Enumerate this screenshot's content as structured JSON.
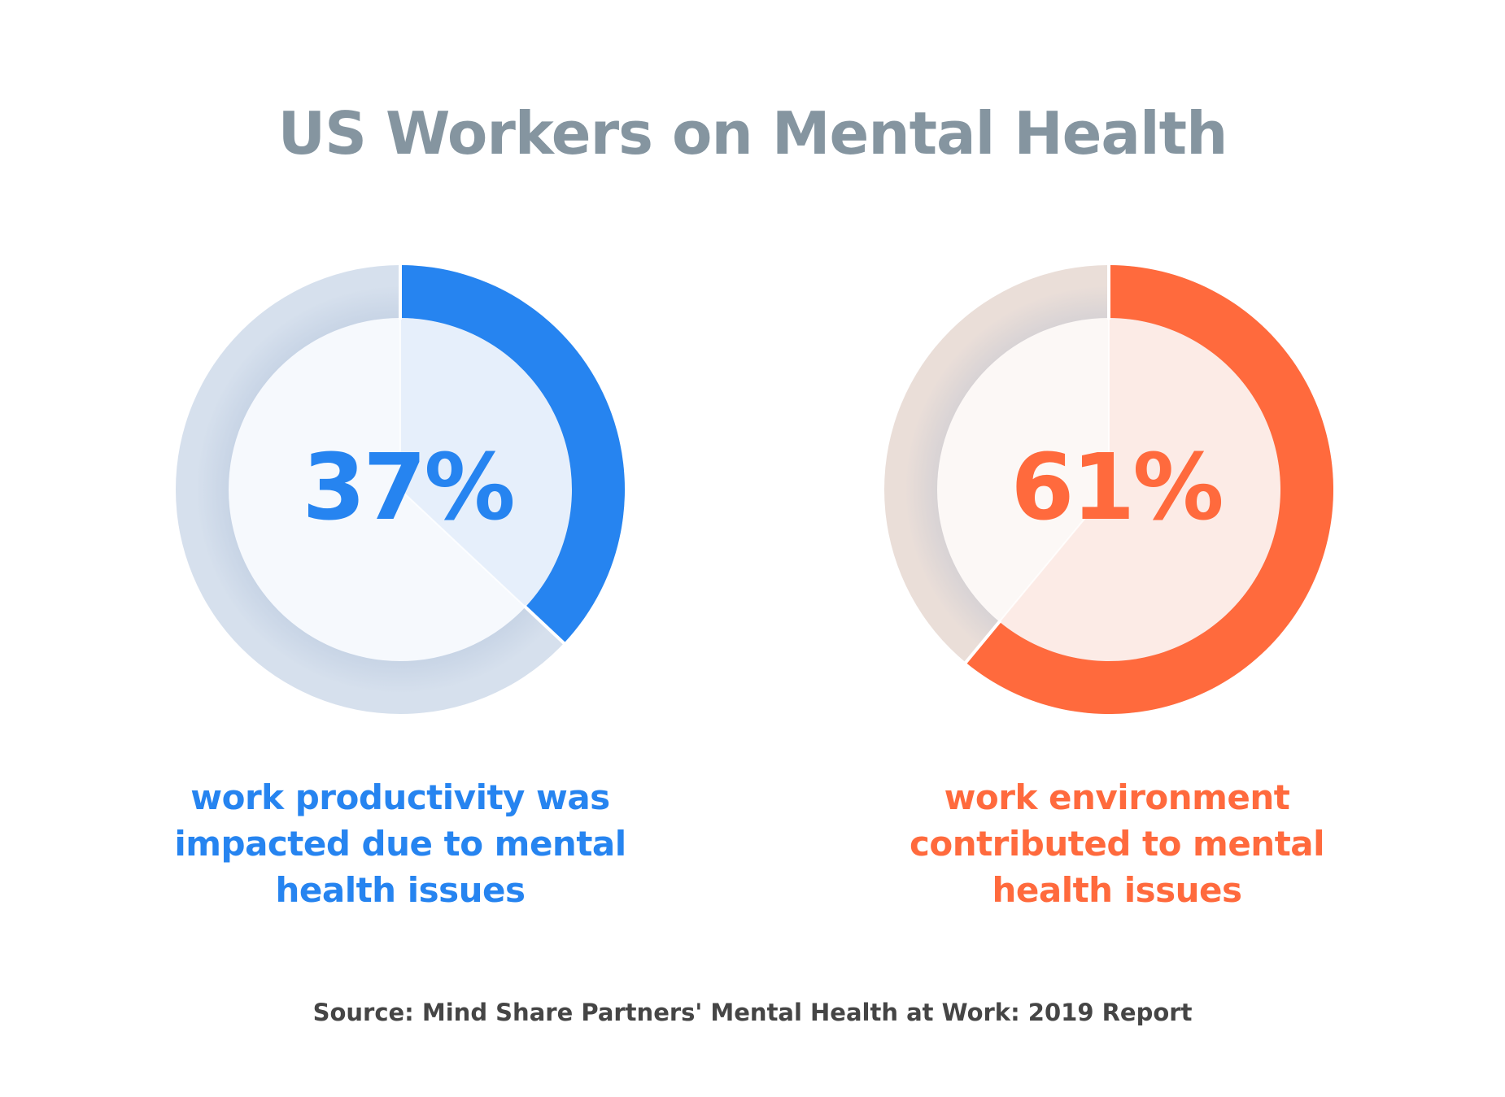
{
  "title": "US Workers on Mental Health",
  "chart_data": [
    {
      "type": "pie",
      "variant": "donut",
      "value": 37,
      "value_label": "37%",
      "caption": "work productivity was impacted due to mental health issues",
      "color": "#2684f0",
      "track_color": "#d6e0ed",
      "inner_color": "#e6effb"
    },
    {
      "type": "pie",
      "variant": "donut",
      "value": 61,
      "value_label": "61%",
      "caption": "work environment contributed to mental health issues",
      "color": "#ff6a3d",
      "track_color": "#eaded8",
      "inner_color": "#fcebe6"
    }
  ],
  "source": "Source: Mind Share Partners' Mental Health at Work: 2019 Report"
}
